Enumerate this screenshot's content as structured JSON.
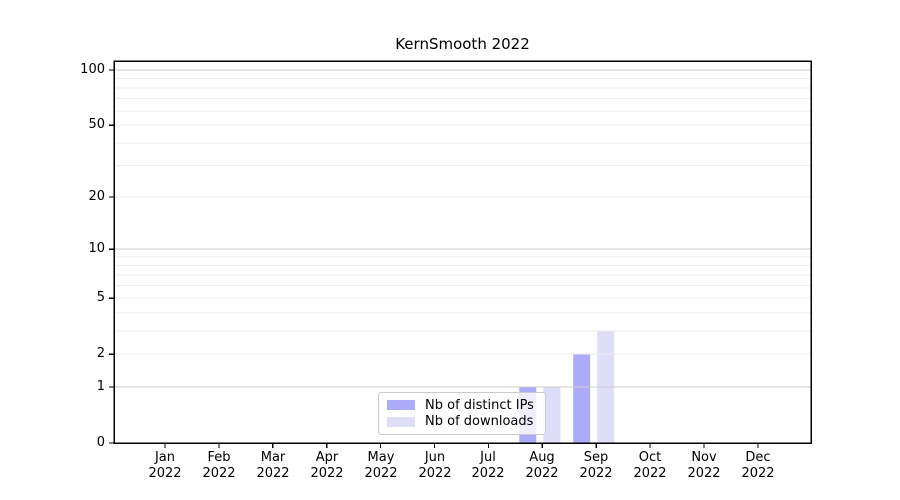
{
  "figure": {
    "background": "#ffffff"
  },
  "chart_data": {
    "type": "bar",
    "title": "KernSmooth 2022",
    "xlabel": "",
    "ylabel": "",
    "yscale": "log1p",
    "ylim": [
      0,
      100
    ],
    "yticks": [
      0,
      1,
      2,
      5,
      10,
      20,
      50,
      100
    ],
    "categories": [
      "Jan 2022",
      "Feb 2022",
      "Mar 2022",
      "Apr 2022",
      "May 2022",
      "Jun 2022",
      "Jul 2022",
      "Aug 2022",
      "Sep 2022",
      "Oct 2022",
      "Nov 2022",
      "Dec 2022"
    ],
    "series": [
      {
        "name": "Nb of distinct IPs",
        "color": "#ababf9",
        "values": [
          0,
          0,
          0,
          0,
          0,
          0,
          0,
          1,
          2,
          0,
          0,
          0
        ]
      },
      {
        "name": "Nb of downloads",
        "color": "#dedef8",
        "values": [
          0,
          0,
          0,
          0,
          0,
          0,
          0,
          1,
          3,
          0,
          0,
          0
        ]
      }
    ],
    "grid": {
      "major": [
        1,
        10,
        100
      ],
      "minor": [
        2,
        3,
        4,
        5,
        6,
        7,
        8,
        9,
        20,
        30,
        40,
        50,
        60,
        70,
        80,
        90
      ],
      "major_color": "#cccccc",
      "minor_color": "#ededed"
    },
    "legend": {
      "position": "lower center"
    },
    "axis_color": "#000000"
  }
}
